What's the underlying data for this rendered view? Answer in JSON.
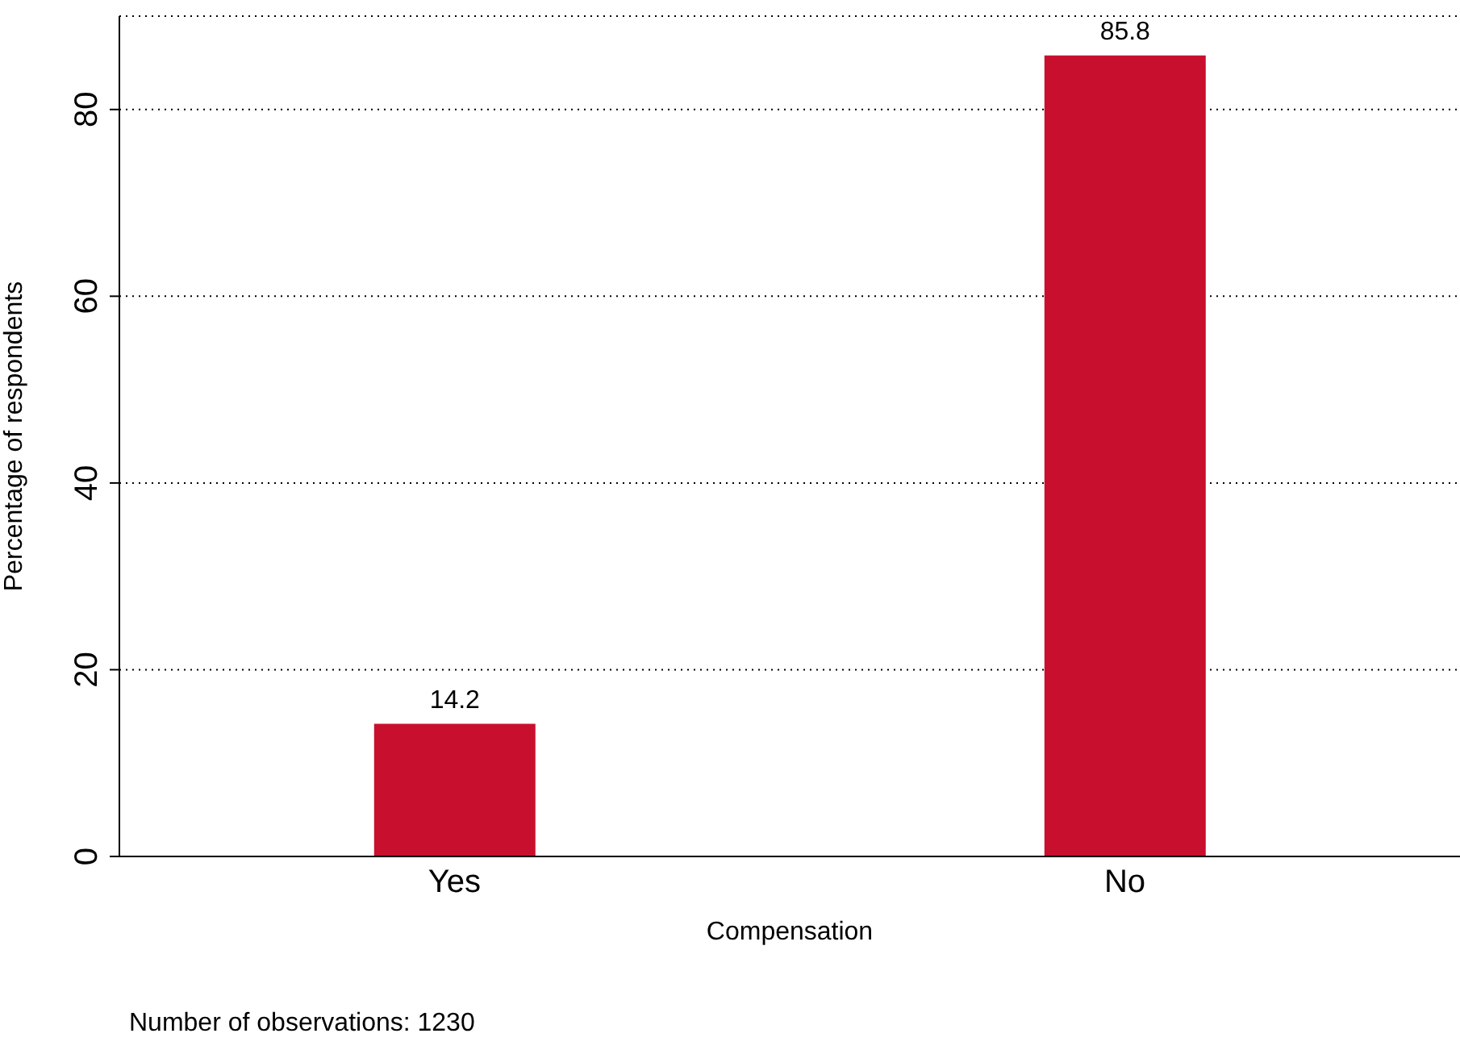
{
  "chart_data": {
    "type": "bar",
    "xlabel": "Compensation",
    "ylabel": "Percentage of respondents",
    "categories": [
      "Yes",
      "No"
    ],
    "values": [
      14.2,
      85.8
    ],
    "color": "#c8102e",
    "ylim": [
      0,
      90
    ],
    "yticks": [
      0,
      20,
      40,
      60,
      80
    ],
    "grid": "y",
    "data_labels": true,
    "annotations": [
      "Number of observations: 1230"
    ]
  }
}
